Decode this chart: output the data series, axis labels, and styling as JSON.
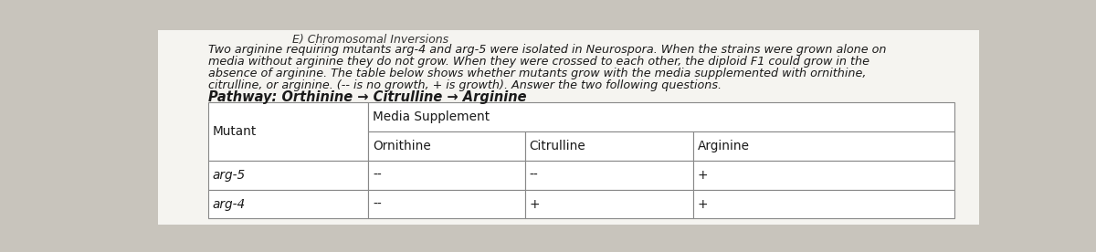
{
  "header": "E) Chromosomal Inversions",
  "paragraph_lines": [
    "Two arginine requiring mutants arg-4 and arg-5 were isolated in Neurospora. When the strains were grown alone on",
    "media without arginine they do not grow. When they were crossed to each other, the diploid F1 could grow in the",
    "absence of arginine. The table below shows whether mutants grow with the media supplemented with ornithine,",
    "citrulline, or arginine. (-- is no growth, + is growth). Answer the two following questions."
  ],
  "pathway_label": "Pathway: Orthinine → Citrulline → Arginine",
  "sub_headers": [
    "Ornithine",
    "Citrulline",
    "Arginine"
  ],
  "rows": [
    [
      "arg-5",
      "--",
      "--",
      "+"
    ],
    [
      "arg-4",
      "--",
      "+",
      "+"
    ]
  ],
  "bg_color": "#c8c4bc",
  "page_color": "#f5f4f0",
  "table_bg": "#ffffff",
  "text_color": "#1a1a1a",
  "border_color": "#888888",
  "fs_para": 9.2,
  "fs_pathway": 10.5,
  "fs_table": 9.8,
  "fs_header": 9.0
}
